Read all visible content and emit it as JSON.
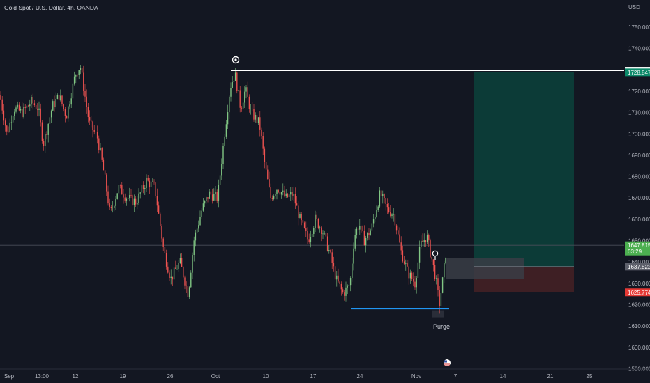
{
  "header": {
    "symbol": "Gold Spot / U.S. Dollar, 4h, OANDA",
    "currency": "USD"
  },
  "colors": {
    "background": "#131722",
    "up": "#81c784",
    "down": "#ef5350",
    "target_zone": "#0c3b37",
    "stop_zone": "#3e1f24",
    "level_line": "#ffffff",
    "purge_line": "#2196f3",
    "entry_zone": "#3a3d45"
  },
  "chart_data": {
    "type": "candlestick",
    "ylim": [
      1590,
      1760
    ],
    "y_ticks": [
      "1750.000",
      "1740.000",
      "1730.000",
      "1720.000",
      "1710.000",
      "1700.000",
      "1690.000",
      "1680.000",
      "1670.000",
      "1660.000",
      "1650.000",
      "1640.000",
      "1630.000",
      "1620.000",
      "1610.000",
      "1600.000",
      "1590.000"
    ],
    "x_ticks": [
      "Sep",
      "13:00",
      "12",
      "19",
      "26",
      "Oct",
      "10",
      "17",
      "24",
      "Nov",
      "7",
      "14",
      "21",
      "25"
    ],
    "anchor_points": [
      [
        0,
        1718
      ],
      [
        10,
        1700
      ],
      [
        20,
        1712
      ],
      [
        32,
        1710
      ],
      [
        45,
        1715
      ],
      [
        55,
        1712
      ],
      [
        62,
        1695
      ],
      [
        75,
        1713
      ],
      [
        85,
        1718
      ],
      [
        95,
        1708
      ],
      [
        108,
        1728
      ],
      [
        115,
        1732
      ],
      [
        128,
        1705
      ],
      [
        140,
        1698
      ],
      [
        150,
        1680
      ],
      [
        158,
        1662
      ],
      [
        170,
        1675
      ],
      [
        182,
        1670
      ],
      [
        195,
        1668
      ],
      [
        210,
        1678
      ],
      [
        222,
        1675
      ],
      [
        235,
        1645
      ],
      [
        245,
        1632
      ],
      [
        258,
        1640
      ],
      [
        270,
        1625
      ],
      [
        278,
        1650
      ],
      [
        290,
        1665
      ],
      [
        300,
        1672
      ],
      [
        312,
        1670
      ],
      [
        322,
        1700
      ],
      [
        330,
        1722
      ],
      [
        337,
        1728
      ],
      [
        345,
        1712
      ],
      [
        352,
        1721
      ],
      [
        360,
        1710
      ],
      [
        372,
        1705
      ],
      [
        380,
        1685
      ],
      [
        388,
        1670
      ],
      [
        398,
        1675
      ],
      [
        410,
        1670
      ],
      [
        420,
        1672
      ],
      [
        430,
        1660
      ],
      [
        442,
        1650
      ],
      [
        452,
        1660
      ],
      [
        462,
        1655
      ],
      [
        472,
        1645
      ],
      [
        482,
        1632
      ],
      [
        492,
        1625
      ],
      [
        502,
        1630
      ],
      [
        508,
        1652
      ],
      [
        515,
        1658
      ],
      [
        522,
        1650
      ],
      [
        532,
        1655
      ],
      [
        545,
        1672
      ],
      [
        555,
        1665
      ],
      [
        565,
        1662
      ],
      [
        575,
        1645
      ],
      [
        585,
        1635
      ],
      [
        595,
        1630
      ],
      [
        603,
        1648
      ],
      [
        612,
        1652
      ],
      [
        620,
        1640
      ],
      [
        625,
        1632
      ],
      [
        630,
        1620
      ],
      [
        635,
        1632
      ],
      [
        640,
        1647
      ]
    ],
    "levels": [
      {
        "name": "high-level",
        "value": 1729.59,
        "label": "1729.590"
      },
      {
        "name": "last-price",
        "value": 1647.815,
        "label": "1647.815",
        "sublabel": "03:29"
      },
      {
        "name": "take-profit",
        "value": 1728.847,
        "label": "1728.847"
      },
      {
        "name": "entry",
        "value": 1637.822,
        "label": "1637.822"
      },
      {
        "name": "stop-loss",
        "value": 1625.774,
        "label": "1625.774"
      },
      {
        "name": "purge-low",
        "value": 1618
      }
    ],
    "annotations": {
      "purge_text": "Purge"
    }
  }
}
